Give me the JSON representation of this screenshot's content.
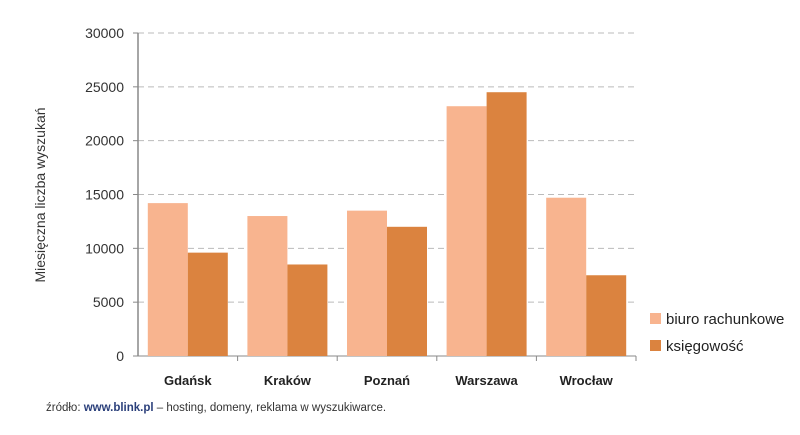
{
  "chart_data": {
    "type": "bar",
    "title": "",
    "xlabel": "",
    "ylabel": "Miesięczna liczba wyszukań",
    "ylim": [
      0,
      30000
    ],
    "yticks": [
      0,
      5000,
      10000,
      15000,
      20000,
      25000,
      30000
    ],
    "grid": true,
    "legend_position": "right-bottom",
    "categories": [
      "Gdańsk",
      "Kraków",
      "Poznań",
      "Warszawa",
      "Wrocław"
    ],
    "series": [
      {
        "name": "biuro rachunkowe",
        "color": "#f8b48f",
        "values": [
          14200,
          13000,
          13500,
          23200,
          14700
        ]
      },
      {
        "name": "księgowość",
        "color": "#db833f",
        "values": [
          9600,
          8500,
          12000,
          24500,
          7500
        ]
      }
    ]
  },
  "source": {
    "prefix": "źródło:",
    "link": "www.blink.pl",
    "suffix": "– hosting, domeny, reklama w wyszukiwarce."
  }
}
